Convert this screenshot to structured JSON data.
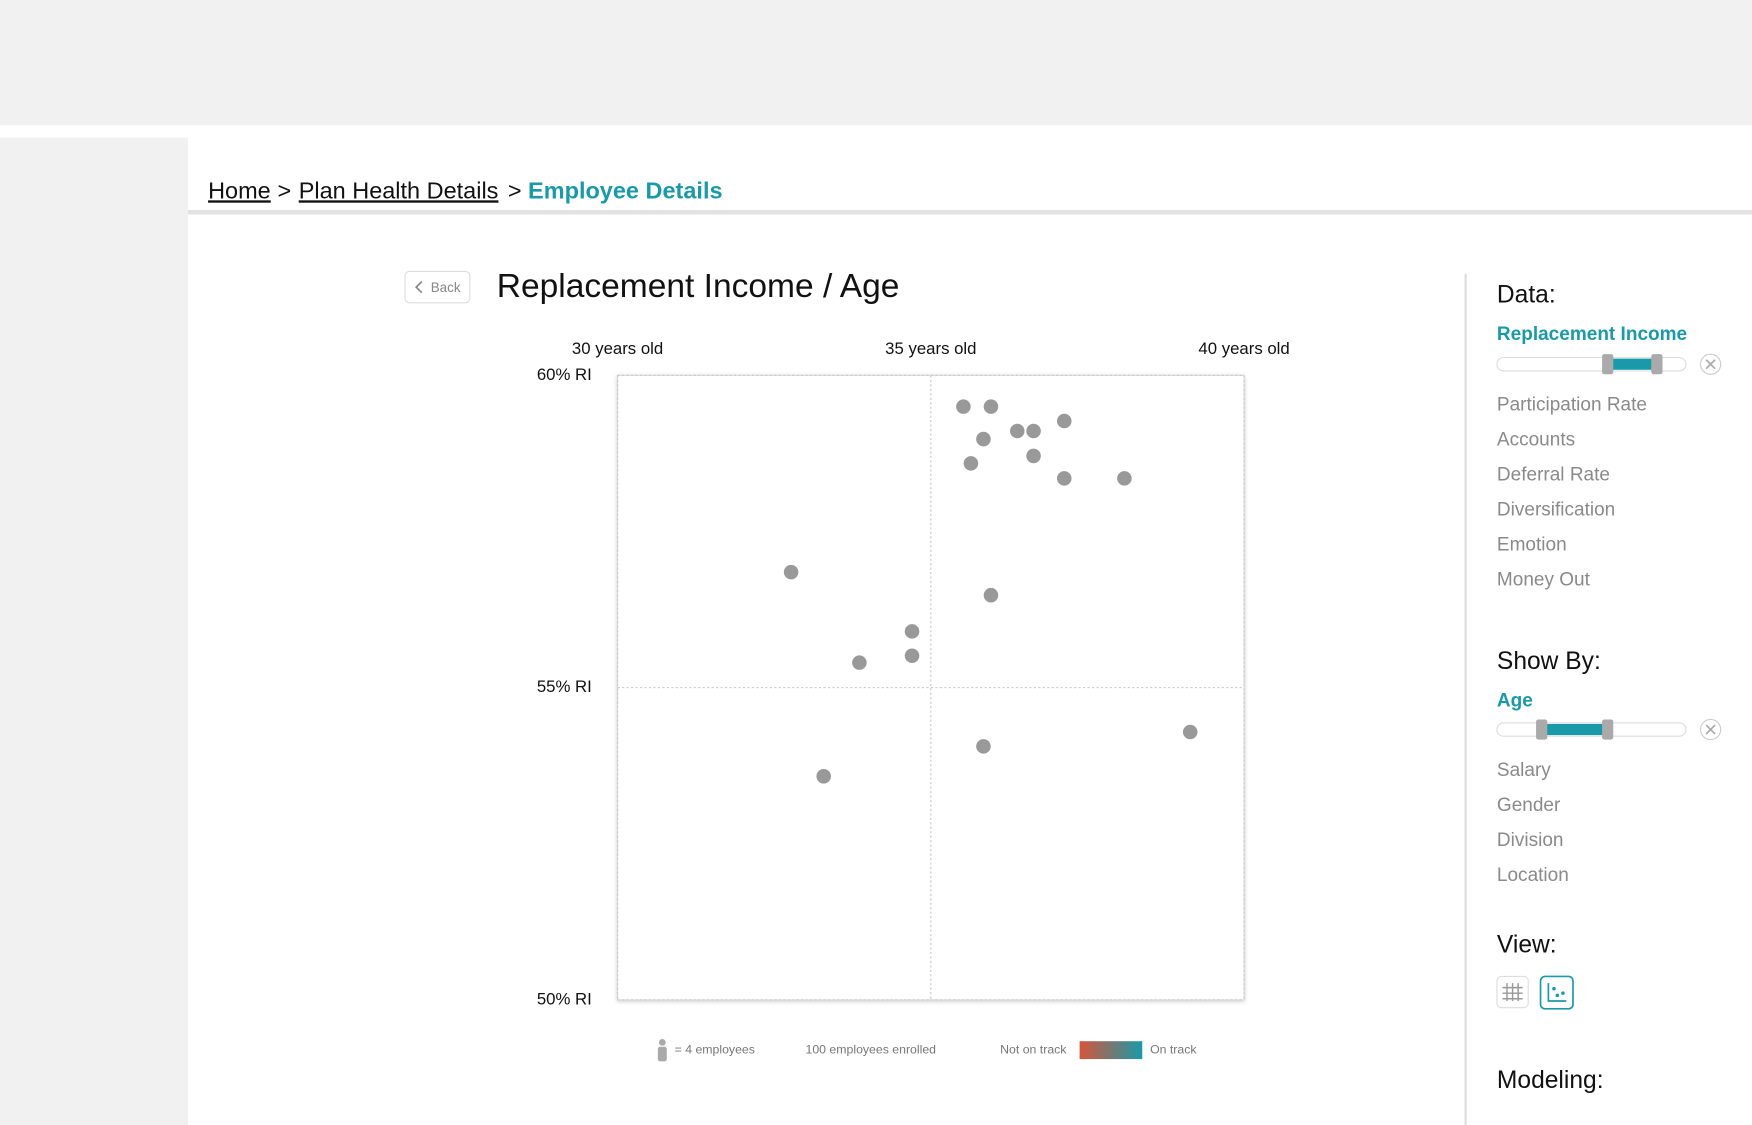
{
  "breadcrumb": {
    "items": [
      "Home",
      "Plan Health Details",
      "Employee Details"
    ],
    "separator": ">"
  },
  "back_button": "Back",
  "chart_data": {
    "type": "scatter",
    "title": "Replacement Income / Age",
    "color": "#999999",
    "grid": true,
    "x": [
      35.52,
      35.96,
      37.13,
      36.38,
      36.64,
      35.84,
      36.64,
      35.64,
      37.13,
      38.09,
      32.77,
      35.96,
      34.7,
      34.7,
      33.86,
      39.14,
      35.84,
      33.29
    ],
    "values": [
      59.5,
      59.5,
      59.27,
      59.11,
      59.11,
      58.98,
      58.71,
      58.59,
      58.35,
      58.35,
      56.85,
      56.48,
      55.9,
      55.51,
      55.4,
      54.29,
      54.06,
      53.58
    ],
    "xlim": [
      30,
      40
    ],
    "ylim": [
      50,
      60
    ],
    "xticks": [
      {
        "value": 30,
        "label": "30 years old"
      },
      {
        "value": 35,
        "label": "35 years old"
      },
      {
        "value": 40,
        "label": "40 years old"
      }
    ],
    "yticks": [
      {
        "value": 50,
        "label": "50% RI"
      },
      {
        "value": 55,
        "label": "55% RI"
      },
      {
        "value": 60,
        "label": "60% RI"
      }
    ]
  },
  "legend": {
    "unit_note": "= 4 employees",
    "enrolled": "100 employees enrolled",
    "low": "Not on track",
    "high": "On track"
  },
  "sidebar": {
    "data_heading": "Data:",
    "data_selected": "Replacement Income",
    "data_options": [
      "Participation Rate",
      "Accounts",
      "Deferral Rate",
      "Diversification",
      "Emotion",
      "Money Out"
    ],
    "show_by_heading": "Show By:",
    "show_by_selected": "Age",
    "show_by_options": [
      "Salary",
      "Gender",
      "Division",
      "Location"
    ],
    "view_heading": "View:",
    "modeling_heading": "Modeling:"
  }
}
